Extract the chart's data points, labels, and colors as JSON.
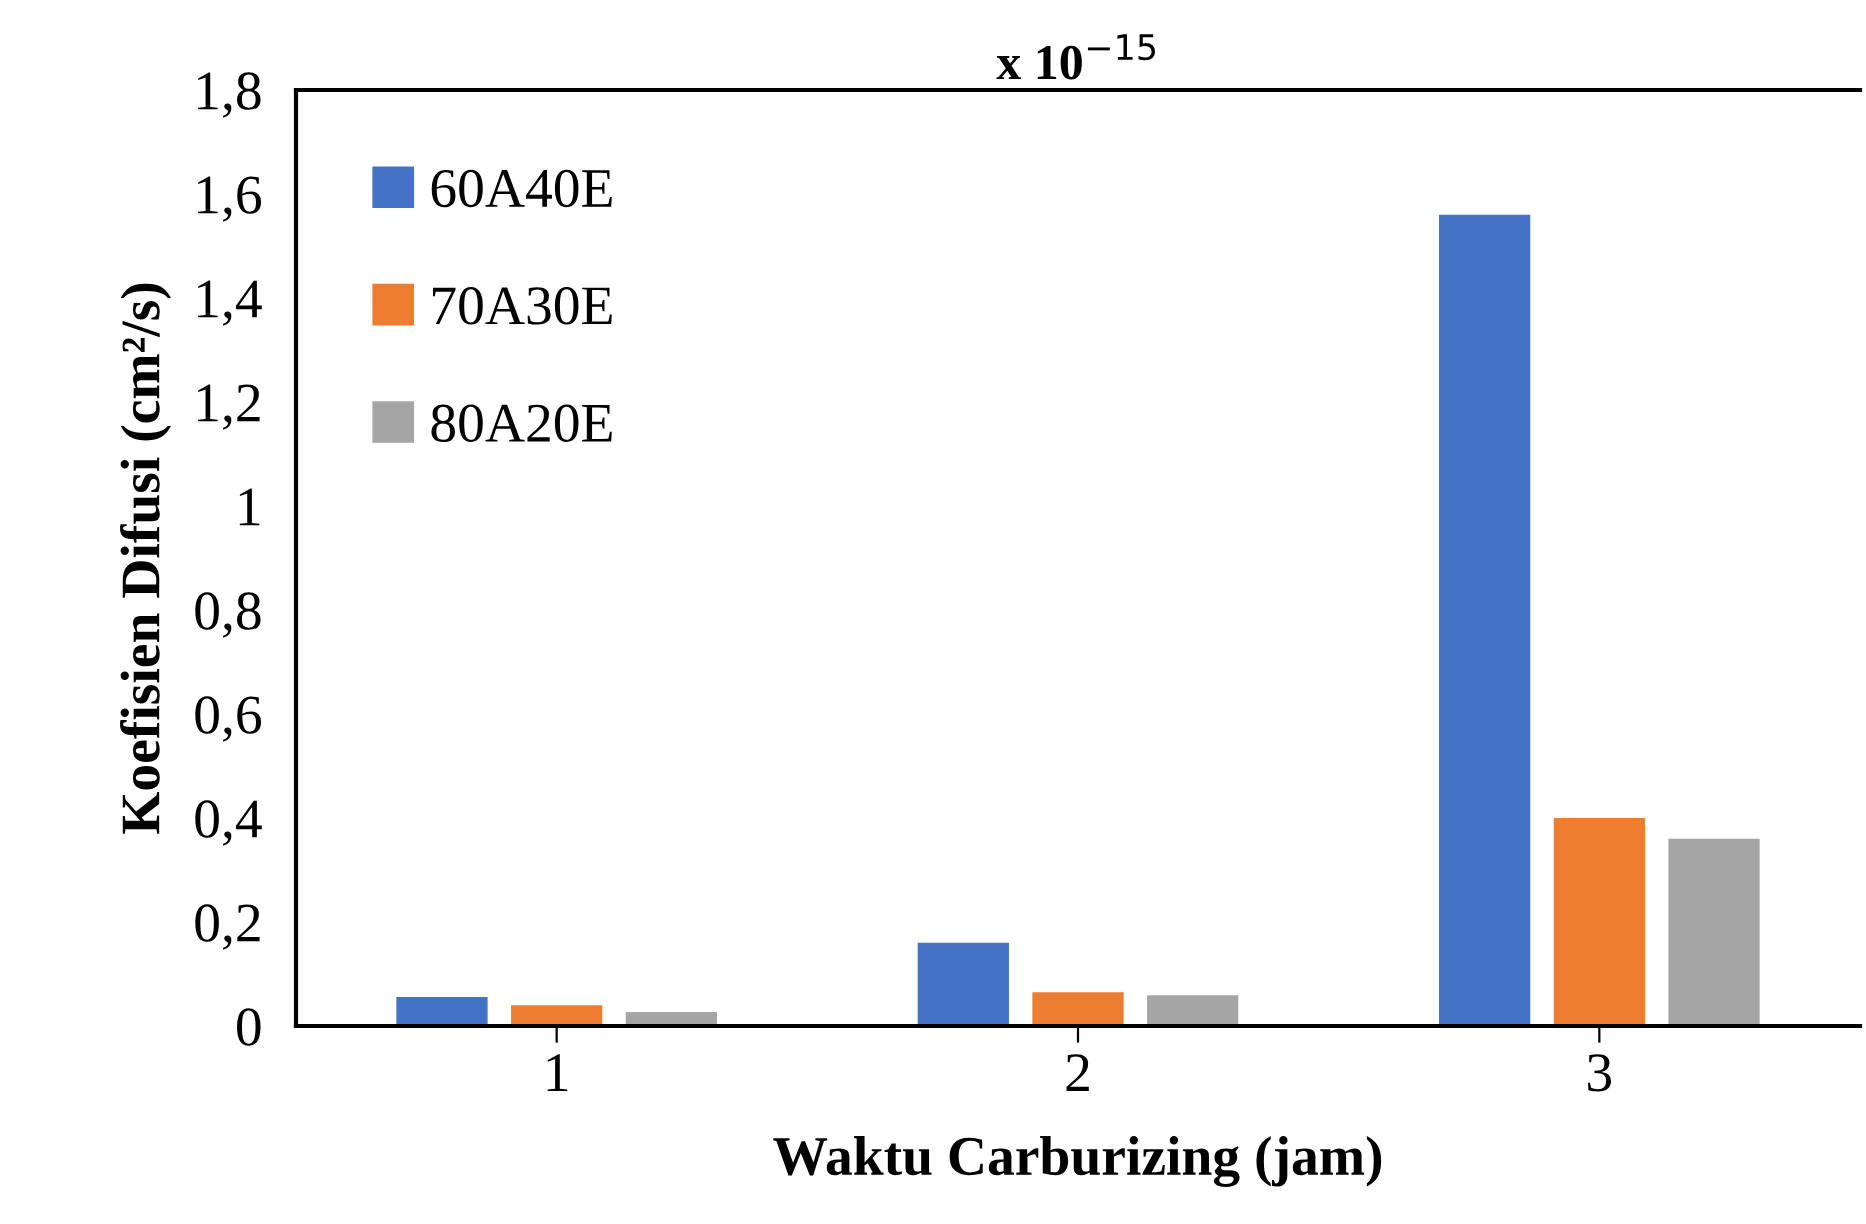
{
  "chart_data": {
    "type": "bar",
    "title": "x 10$^{−15}$",
    "xlabel": "Waktu Carburizing (jam)",
    "ylabel": "Koefisien Difusi (cm²/s)",
    "categories": [
      "1",
      "2",
      "3"
    ],
    "series": [
      {
        "name": "60A40E",
        "color": "#4472c4",
        "values": [
          0.056,
          0.16,
          1.56
        ]
      },
      {
        "name": "70A30E",
        "color": "#ed7d31",
        "values": [
          0.04,
          0.065,
          0.4
        ]
      },
      {
        "name": "80A20E",
        "color": "#a5a5a5",
        "values": [
          0.027,
          0.059,
          0.36
        ]
      }
    ],
    "ylim": [
      0,
      1.8
    ],
    "yticks": [
      {
        "value": 0,
        "label": "0"
      },
      {
        "value": 0.2,
        "label": "0,2"
      },
      {
        "value": 0.4,
        "label": "0,4"
      },
      {
        "value": 0.6,
        "label": "0,6"
      },
      {
        "value": 0.8,
        "label": "0,8"
      },
      {
        "value": 1,
        "label": "1"
      },
      {
        "value": 1.2,
        "label": "1,2"
      },
      {
        "value": 1.4,
        "label": "1,4"
      },
      {
        "value": 1.6,
        "label": "1,6"
      },
      {
        "value": 1.8,
        "label": "1,8"
      }
    ],
    "legend": "top left",
    "grid": false
  }
}
